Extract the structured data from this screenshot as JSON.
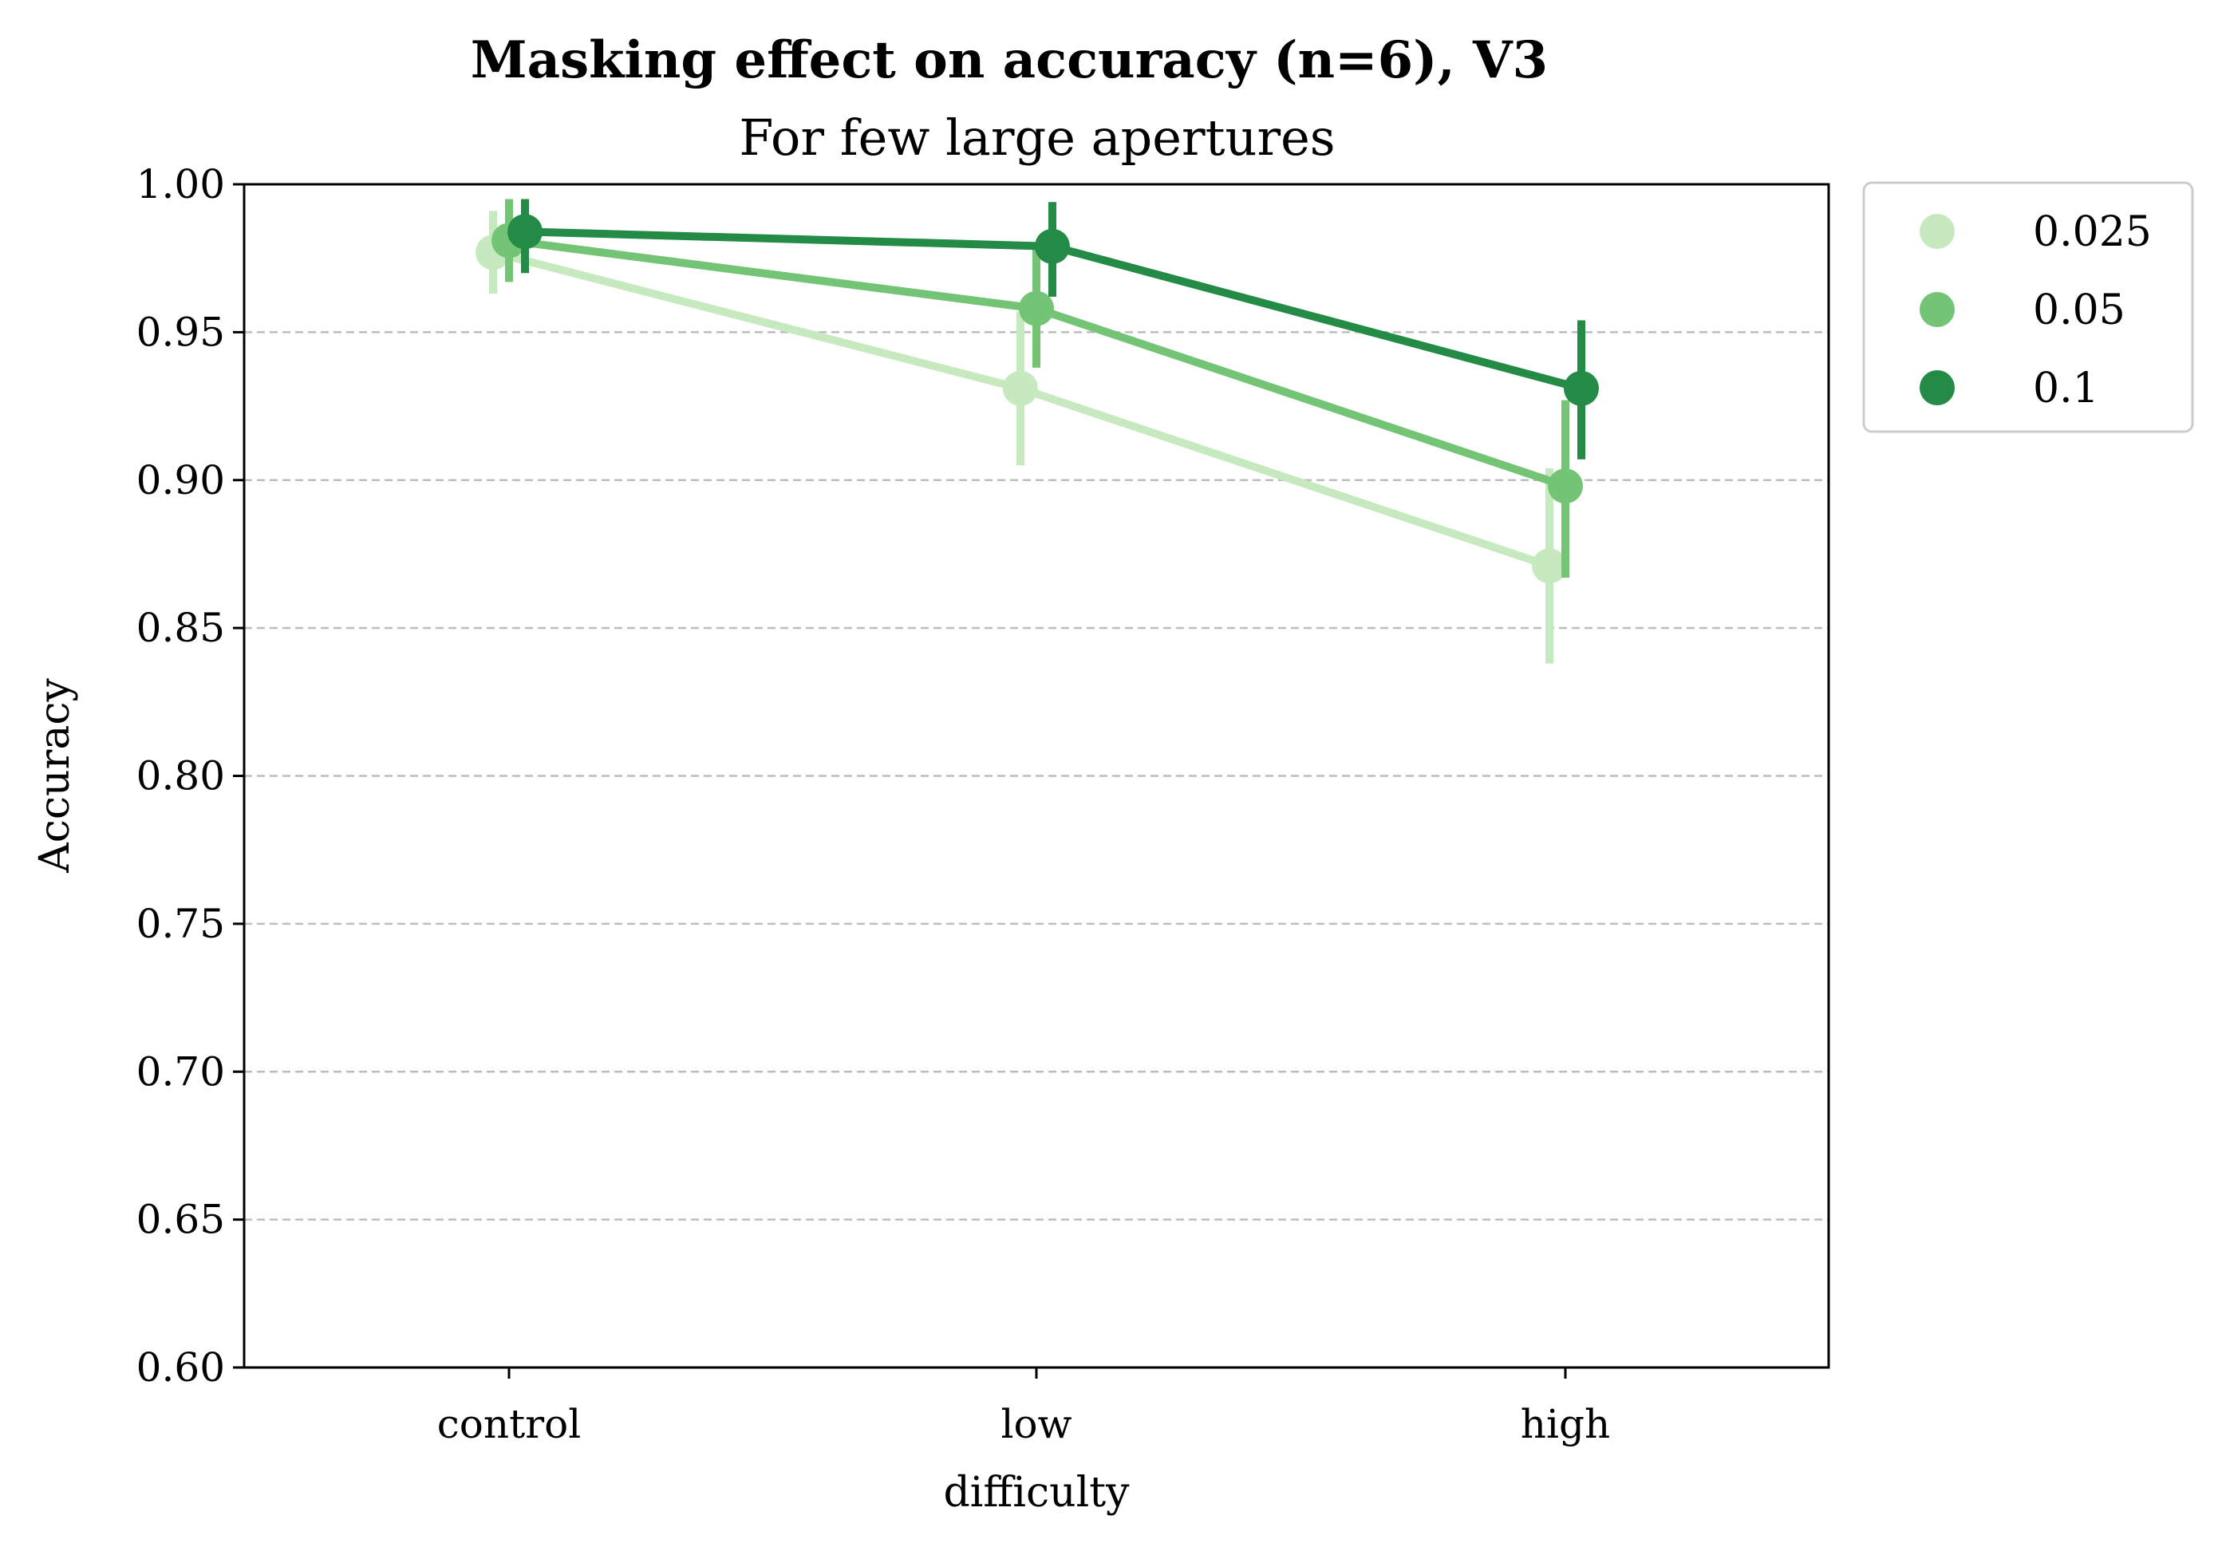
{
  "chart_data": {
    "type": "line",
    "title": "Masking effect on accuracy (n=6), V3",
    "subtitle": "For few large apertures",
    "xlabel": "difficulty",
    "ylabel": "Accuracy",
    "categories": [
      "control",
      "low",
      "high"
    ],
    "ylim": [
      0.6,
      1.0
    ],
    "yticks": [
      0.6,
      0.65,
      0.7,
      0.75,
      0.8,
      0.85,
      0.9,
      0.95,
      1.0
    ],
    "ytick_labels": [
      "0.60",
      "0.65",
      "0.70",
      "0.75",
      "0.80",
      "0.85",
      "0.90",
      "0.95",
      "1.00"
    ],
    "grid": "horizontal dashed",
    "legend_position": "outside top-right",
    "series": [
      {
        "name": "0.025",
        "color": "#c7e9c0",
        "values": [
          0.977,
          0.931,
          0.871
        ],
        "err_low": [
          0.963,
          0.905,
          0.838
        ],
        "err_high": [
          0.991,
          0.957,
          0.904
        ]
      },
      {
        "name": "0.05",
        "color": "#74c476",
        "values": [
          0.981,
          0.958,
          0.898
        ],
        "err_low": [
          0.967,
          0.938,
          0.867
        ],
        "err_high": [
          0.995,
          0.978,
          0.927
        ]
      },
      {
        "name": "0.1",
        "color": "#238b45",
        "values": [
          0.984,
          0.979,
          0.931
        ],
        "err_low": [
          0.97,
          0.962,
          0.907
        ],
        "err_high": [
          0.995,
          0.994,
          0.954
        ]
      }
    ]
  }
}
